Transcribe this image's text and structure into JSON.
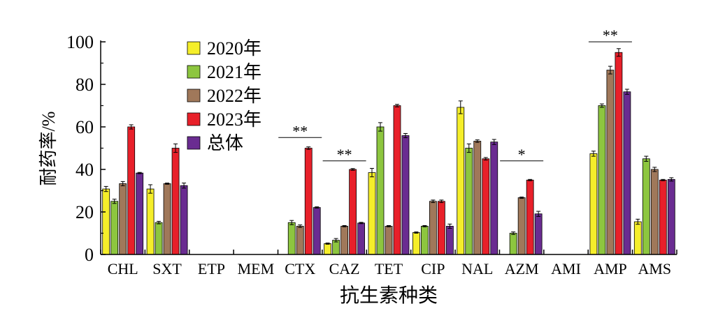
{
  "chart_data": {
    "type": "bar",
    "title": "",
    "xlabel": "抗生素种类",
    "ylabel": "耐药率/%",
    "ylim": [
      0,
      100
    ],
    "yticks": [
      "0",
      "20",
      "40",
      "60",
      "80",
      "100"
    ],
    "legend_position": "top-left",
    "grid": false,
    "categories": [
      "CHL",
      "SXT",
      "ETP",
      "MEM",
      "CTX",
      "CAZ",
      "TET",
      "CIP",
      "NAL",
      "AZM",
      "AMI",
      "AMP",
      "AMS"
    ],
    "series": [
      {
        "name": "2020年",
        "color": "#f5ee2a",
        "values": [
          30.8,
          30.8,
          0,
          0,
          0,
          5.1,
          38.5,
          10.3,
          69.2,
          0,
          0,
          47.4,
          15.4
        ],
        "errors": [
          1.2,
          2.0,
          0,
          0,
          0,
          0.3,
          2.0,
          0.3,
          3.0,
          0,
          0,
          1.2,
          1.2
        ]
      },
      {
        "name": "2021年",
        "color": "#8dc63f",
        "values": [
          25.0,
          15.0,
          0,
          0,
          15.0,
          6.7,
          60.0,
          13.3,
          50.0,
          10.0,
          0,
          70.0,
          45.0
        ],
        "errors": [
          1.0,
          0.6,
          0,
          0,
          1.0,
          0.8,
          2.0,
          0.3,
          2.0,
          0.6,
          0,
          0.8,
          1.2
        ]
      },
      {
        "name": "2022年",
        "color": "#a0785a",
        "values": [
          33.3,
          33.3,
          0,
          0,
          13.3,
          13.3,
          13.3,
          25.0,
          53.3,
          26.7,
          0,
          86.7,
          40.0
        ],
        "errors": [
          1.0,
          0.3,
          0,
          0,
          0.6,
          0.3,
          0.3,
          0.6,
          0.6,
          0.3,
          0,
          1.8,
          1.0
        ]
      },
      {
        "name": "2023年",
        "color": "#e8202a",
        "values": [
          60.0,
          50.0,
          0,
          0,
          50.0,
          40.0,
          70.0,
          25.0,
          45.0,
          35.0,
          0,
          95.0,
          35.0
        ],
        "errors": [
          1.0,
          2.0,
          0,
          0,
          0.6,
          0.4,
          0.6,
          0.6,
          0.6,
          0.3,
          0,
          1.8,
          0.3
        ]
      },
      {
        "name": "总体",
        "color": "#6a2c91",
        "values": [
          38.3,
          32.4,
          0,
          0,
          22.1,
          14.8,
          55.9,
          13.3,
          52.9,
          19.1,
          0,
          76.5,
          35.3
        ],
        "errors": [
          0.3,
          1.2,
          0,
          0,
          0.3,
          0.3,
          1.0,
          1.0,
          1.2,
          1.2,
          0,
          1.2,
          0.8
        ]
      }
    ],
    "annotations": [
      {
        "label": "**",
        "from_category": "CTX",
        "y": 55
      },
      {
        "label": "**",
        "from_category": "CAZ",
        "y": 44
      },
      {
        "label": "*",
        "from_category": "AZM",
        "y": 44
      },
      {
        "label": "**",
        "from_category": "AMP",
        "y": 100
      }
    ]
  }
}
